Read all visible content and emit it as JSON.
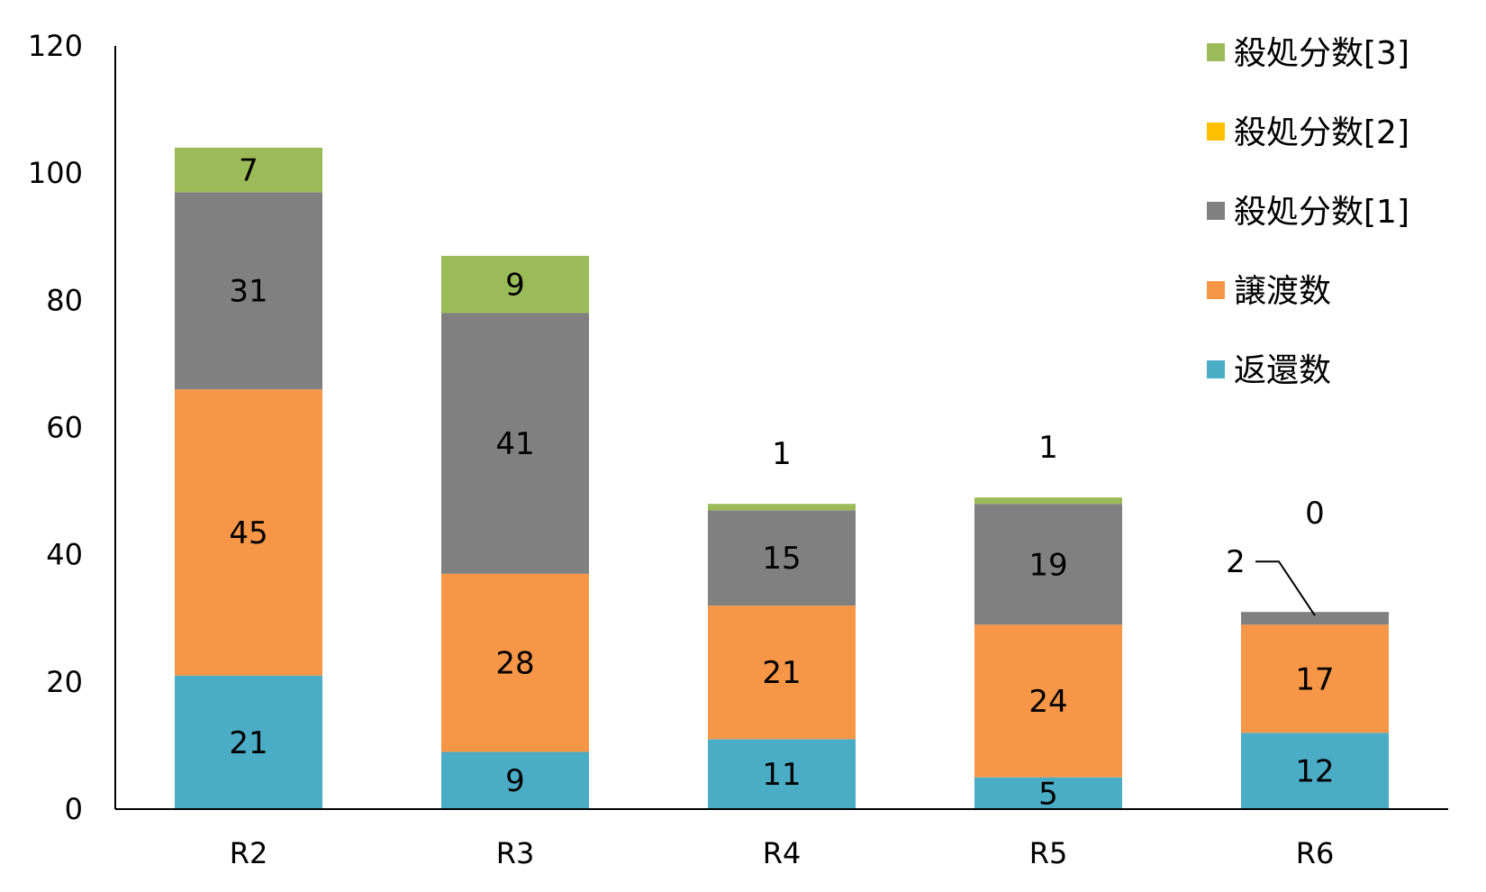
{
  "chart_data": {
    "type": "bar",
    "stacked": true,
    "categories": [
      "R2",
      "R3",
      "R4",
      "R5",
      "R6"
    ],
    "ylim": [
      0,
      120
    ],
    "yticks": [
      0,
      20,
      40,
      60,
      80,
      100,
      120
    ],
    "grid": false,
    "legend_position": "top-right",
    "series": [
      {
        "name": "返還数",
        "color": "#4bacc6",
        "values": [
          21,
          9,
          11,
          5,
          12
        ]
      },
      {
        "name": "譲渡数",
        "color": "#f79646",
        "values": [
          45,
          28,
          21,
          24,
          17
        ]
      },
      {
        "name": "殺処分数[1]",
        "color": "#808080",
        "values": [
          31,
          41,
          15,
          19,
          2
        ]
      },
      {
        "name": "殺処分数[2]",
        "color": "#ffc000",
        "values": [
          0,
          0,
          0,
          0,
          0
        ]
      },
      {
        "name": "殺処分数[3]",
        "color": "#9bbb59",
        "values": [
          7,
          9,
          1,
          1,
          0
        ]
      }
    ],
    "legend_order": [
      "殺処分数[3]",
      "殺処分数[2]",
      "殺処分数[1]",
      "譲渡数",
      "返還数"
    ]
  }
}
